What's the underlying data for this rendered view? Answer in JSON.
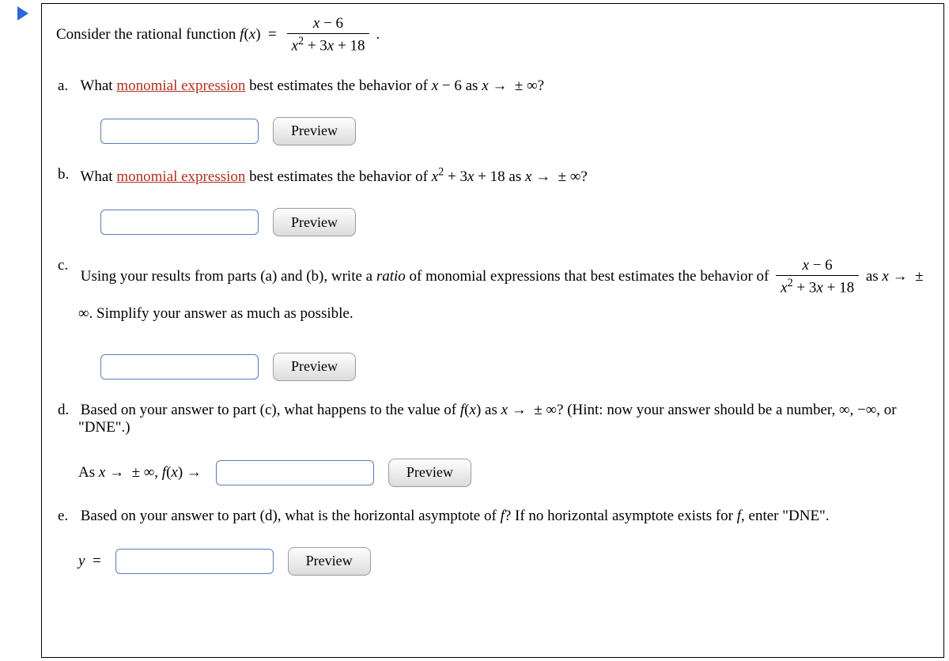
{
  "intro": {
    "prefix": "Consider the rational function ",
    "fn": "f(x) = ",
    "numerator": "x − 6",
    "denominator": "x² + 3x + 18",
    "suffix": "."
  },
  "parts": {
    "a": {
      "label": "a.",
      "t1": "What ",
      "link": "monomial expression",
      "t2": " best estimates the behavior of ",
      "expr": "x − 6",
      "t3": " as ",
      "limit": "x →  ± ∞?",
      "preview": "Preview"
    },
    "b": {
      "label": "b.",
      "t1": "What ",
      "link": "monomial expression",
      "t2": " best estimates the behavior of ",
      "expr": "x² + 3x + 18",
      "t3": " as ",
      "limit": "x →  ± ∞?",
      "preview": "Preview"
    },
    "c": {
      "label": "c.",
      "t1": "Using your results from parts (a) and (b), write a ",
      "em": "ratio",
      "t2": " of monomial expressions that best estimates the behavior of ",
      "numerator": "x − 6",
      "denominator": "x² + 3x + 18",
      "t3": " as ",
      "limit": "x →  ± ∞",
      "t4": ". Simplify your answer as much as possible.",
      "preview": "Preview"
    },
    "d": {
      "label": "d.",
      "t1": "Based on your answer to part (c), what happens to the value of ",
      "fn": "f(x)",
      "t2": " as ",
      "limit": "x →  ± ∞?",
      "hint": " (Hint: now your answer should be a number, ∞, −∞, or \"DNE\".)",
      "prefix": "As x →  ± ∞, f(x) → ",
      "preview": "Preview"
    },
    "e": {
      "label": "e.",
      "t1": "Based on your answer to part (d), what is the horizontal asymptote of ",
      "fvar": "f",
      "t2": "? If no horizontal asymptote exists for ",
      "fvar2": "f",
      "t3": ", enter \"DNE\".",
      "prefix": "y = ",
      "preview": "Preview"
    }
  }
}
